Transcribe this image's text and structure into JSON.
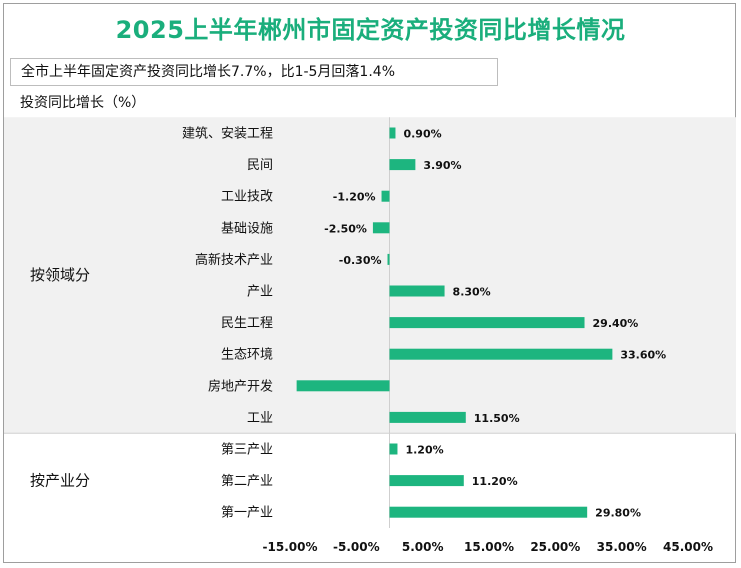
{
  "title": "2025上半年郴州市固定资产投资同比增长情况",
  "subtitle": "全市上半年固定资产投资同比增长7.7%，比1-5月回落1.4%",
  "unit_label": "投资同比增长（%）",
  "colors": {
    "bar": "#1db57f",
    "title": "#1aae7c",
    "band": "#f1f1f1"
  },
  "chart_data": {
    "type": "bar",
    "orientation": "horizontal",
    "xlim": [
      -15,
      45
    ],
    "x_ticks": [
      "-15.00%",
      "-5.00%",
      "5.00%",
      "15.00%",
      "25.00%",
      "35.00%",
      "45.00%"
    ],
    "groups": [
      {
        "name": "按领域分",
        "items": [
          {
            "category": "建筑、安装工程",
            "value": 0.9,
            "label": "0.90%"
          },
          {
            "category": "民间",
            "value": 3.9,
            "label": "3.90%"
          },
          {
            "category": "工业技改",
            "value": -1.2,
            "label": "-1.20%"
          },
          {
            "category": "基础设施",
            "value": -2.5,
            "label": "-2.50%"
          },
          {
            "category": "高新技术产业",
            "value": -0.3,
            "label": "-0.30%"
          },
          {
            "category": "产业",
            "value": 8.3,
            "label": "8.30%"
          },
          {
            "category": "民生工程",
            "value": 29.4,
            "label": "29.40%"
          },
          {
            "category": "生态环境",
            "value": 33.6,
            "label": "33.60%"
          },
          {
            "category": "房地产开发",
            "value": -14.0,
            "label": ""
          },
          {
            "category": "工业",
            "value": 11.5,
            "label": "11.50%"
          }
        ]
      },
      {
        "name": "按产业分",
        "items": [
          {
            "category": "第三产业",
            "value": 1.2,
            "label": "1.20%"
          },
          {
            "category": "第二产业",
            "value": 11.2,
            "label": "11.20%"
          },
          {
            "category": "第一产业",
            "value": 29.8,
            "label": "29.80%"
          }
        ]
      }
    ]
  }
}
